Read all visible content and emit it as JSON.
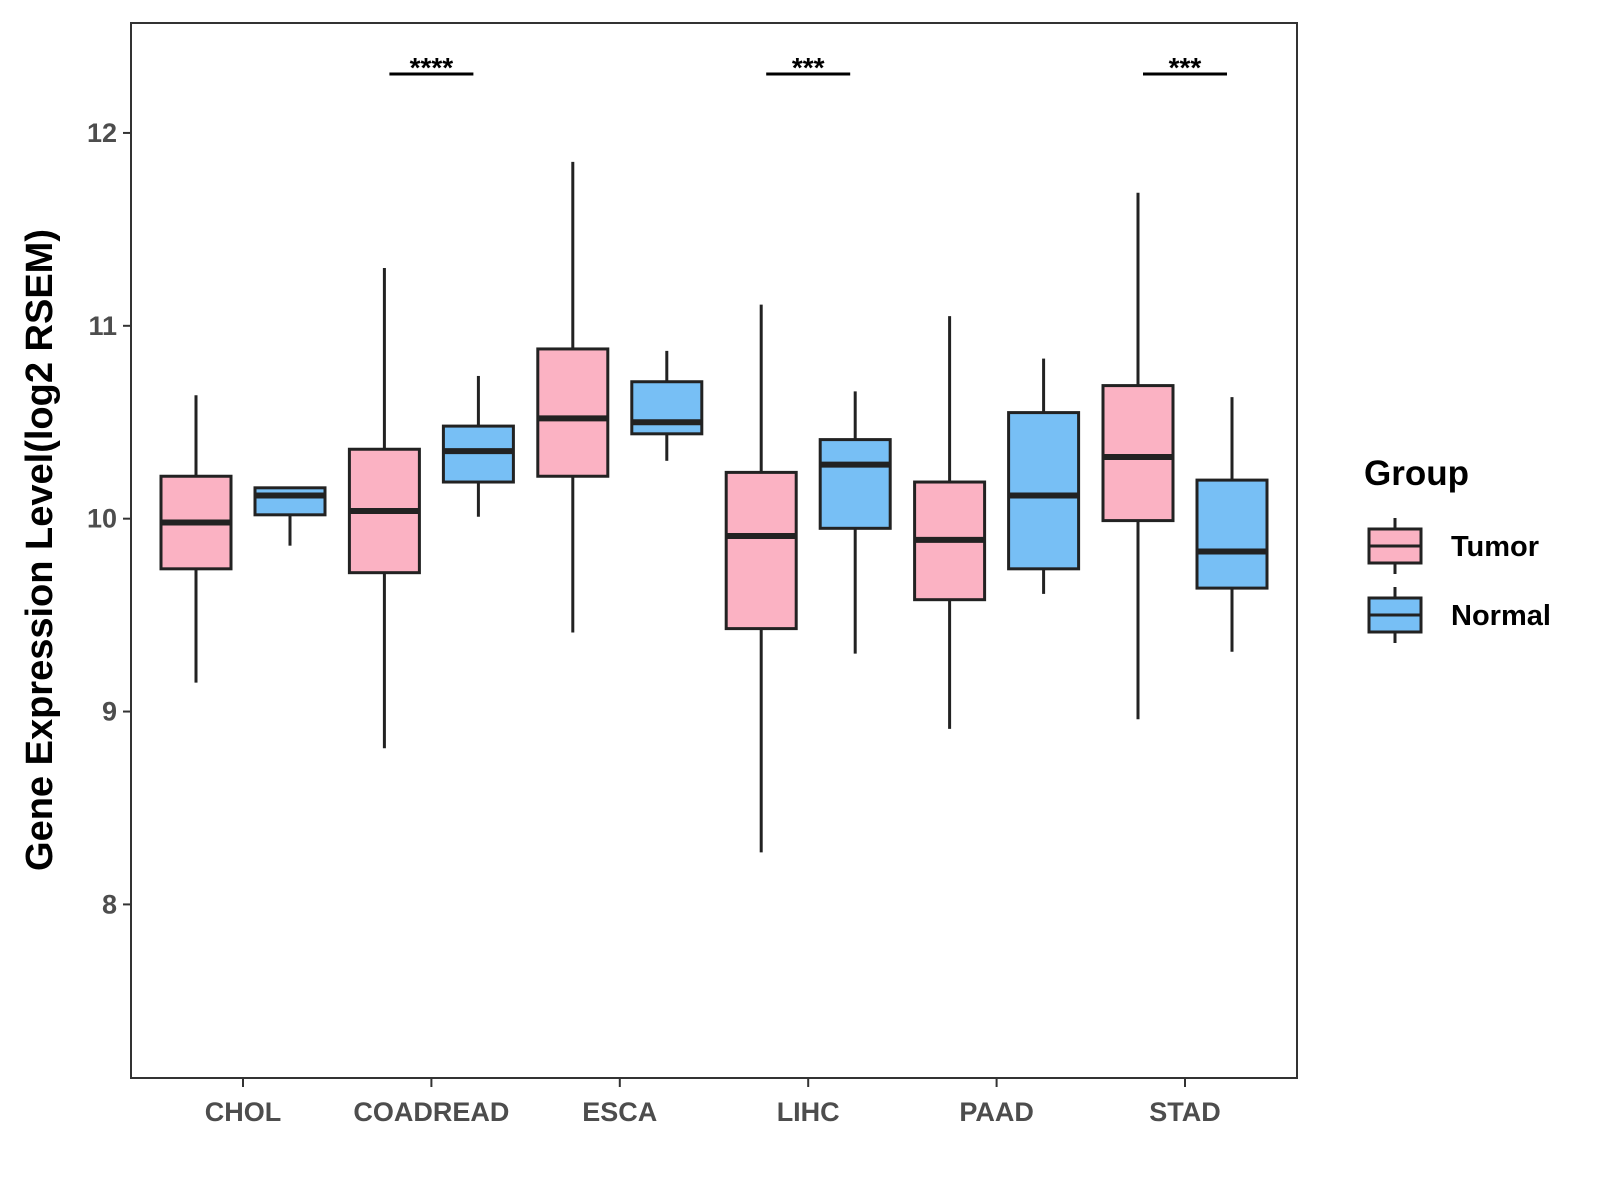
{
  "chart_data": {
    "type": "boxplot",
    "title": "",
    "xlabel": "",
    "ylabel": "Gene Expression Level(log2 RSEM)",
    "ylim": [
      7.1,
      12.57
    ],
    "yticks": [
      8,
      9,
      10,
      11,
      12
    ],
    "categories": [
      "CHOL",
      "COADREAD",
      "ESCA",
      "LIHC",
      "PAAD",
      "STAD"
    ],
    "legend": {
      "title": "Group",
      "position": "right",
      "entries": [
        "Tumor",
        "Normal"
      ]
    },
    "colors": {
      "Tumor": "#fbb2c3",
      "Normal": "#77bff5",
      "outline": "#222222",
      "axis": "#333333"
    },
    "series": [
      {
        "name": "Tumor",
        "boxes": [
          {
            "category": "CHOL",
            "min": 9.15,
            "q1": 9.74,
            "median": 9.98,
            "q3": 10.22,
            "max": 10.64
          },
          {
            "category": "COADREAD",
            "min": 8.81,
            "q1": 9.72,
            "median": 10.04,
            "q3": 10.36,
            "max": 11.3
          },
          {
            "category": "ESCA",
            "min": 9.41,
            "q1": 10.22,
            "median": 10.52,
            "q3": 10.88,
            "max": 11.85
          },
          {
            "category": "LIHC",
            "min": 8.27,
            "q1": 9.43,
            "median": 9.91,
            "q3": 10.24,
            "max": 11.11
          },
          {
            "category": "PAAD",
            "min": 8.91,
            "q1": 9.58,
            "median": 9.89,
            "q3": 10.19,
            "max": 11.05
          },
          {
            "category": "STAD",
            "min": 8.96,
            "q1": 9.99,
            "median": 10.32,
            "q3": 10.69,
            "max": 11.69
          }
        ]
      },
      {
        "name": "Normal",
        "boxes": [
          {
            "category": "CHOL",
            "min": 9.86,
            "q1": 10.02,
            "median": 10.12,
            "q3": 10.16,
            "max": 10.16
          },
          {
            "category": "COADREAD",
            "min": 10.01,
            "q1": 10.19,
            "median": 10.35,
            "q3": 10.48,
            "max": 10.74
          },
          {
            "category": "ESCA",
            "min": 10.3,
            "q1": 10.44,
            "median": 10.5,
            "q3": 10.71,
            "max": 10.87
          },
          {
            "category": "LIHC",
            "min": 9.3,
            "q1": 9.95,
            "median": 10.28,
            "q3": 10.41,
            "max": 10.66
          },
          {
            "category": "PAAD",
            "min": 9.61,
            "q1": 9.74,
            "median": 10.12,
            "q3": 10.55,
            "max": 10.83
          },
          {
            "category": "STAD",
            "min": 9.31,
            "q1": 9.64,
            "median": 9.83,
            "q3": 10.2,
            "max": 10.63
          }
        ]
      }
    ],
    "significance": [
      {
        "category": "COADREAD",
        "label": "****"
      },
      {
        "category": "LIHC",
        "label": "***"
      },
      {
        "category": "STAD",
        "label": "***"
      }
    ]
  }
}
